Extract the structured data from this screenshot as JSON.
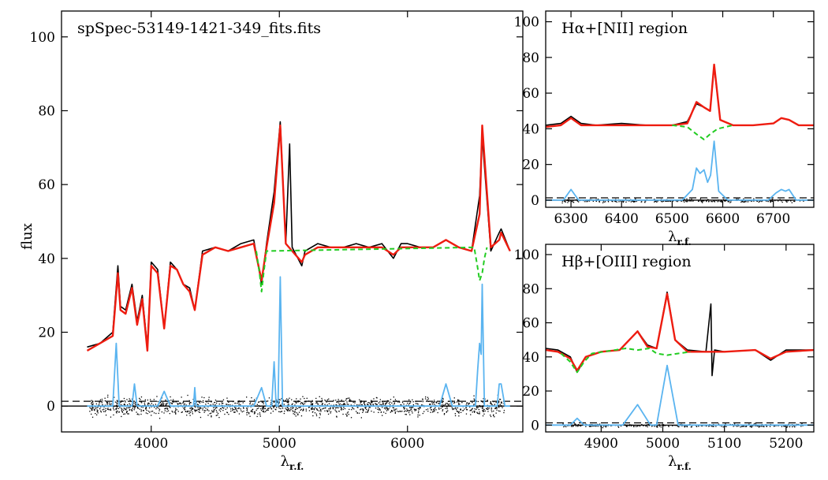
{
  "figure": {
    "ylabel": "flux",
    "xlabel": "λr.f.",
    "xlabel_main": "λ",
    "xlabel_sub": "r.f."
  },
  "colors": {
    "observed": "#000000",
    "model": "#ee1c10",
    "continuum": "#22cc22",
    "emission": "#5ab4f0",
    "residual": "#000000"
  },
  "chart_data": [
    {
      "type": "line",
      "panel": "full",
      "title": "spSpec-53149-1421-349_fits.fits",
      "xlabel": "λr.f.",
      "ylabel": "flux",
      "xlim": [
        3300,
        6900
      ],
      "ylim": [
        -7,
        107
      ],
      "xticks": [
        4000,
        5000,
        6000
      ],
      "yticks": [
        0,
        20,
        40,
        60,
        80,
        100
      ],
      "reference_lines": [
        {
          "style": "solid",
          "y": 0
        },
        {
          "style": "dashed",
          "y": 1.3
        }
      ],
      "series": [
        {
          "role": "observed",
          "x": [
            3500,
            3600,
            3700,
            3740,
            3760,
            3800,
            3850,
            3890,
            3930,
            3970,
            4000,
            4050,
            4101,
            4150,
            4200,
            4250,
            4300,
            4340,
            4400,
            4500,
            4600,
            4700,
            4800,
            4861,
            4900,
            4959,
            5007,
            5050,
            5080,
            5100,
            5175,
            5200,
            5300,
            5400,
            5500,
            5600,
            5700,
            5800,
            5890,
            5950,
            6000,
            6100,
            6200,
            6300,
            6400,
            6500,
            6563,
            6583,
            6650,
            6716,
            6731,
            6800
          ],
          "y": [
            16,
            17,
            20,
            38,
            27,
            26,
            33,
            23,
            30,
            16,
            39,
            37,
            21,
            39,
            37,
            33,
            32,
            26,
            42,
            43,
            42,
            44,
            45,
            33,
            44,
            58,
            77,
            44,
            71,
            43,
            38,
            42,
            44,
            43,
            43,
            44,
            43,
            44,
            40,
            44,
            44,
            43,
            43,
            45,
            43,
            42,
            57,
            73,
            42,
            47,
            48,
            42
          ]
        },
        {
          "role": "model",
          "x": [
            3500,
            3600,
            3700,
            3740,
            3760,
            3800,
            3850,
            3890,
            3930,
            3970,
            4000,
            4050,
            4101,
            4150,
            4200,
            4250,
            4300,
            4340,
            4400,
            4500,
            4600,
            4700,
            4800,
            4861,
            4900,
            4959,
            5007,
            5050,
            5100,
            5175,
            5200,
            5300,
            5400,
            5500,
            5600,
            5700,
            5800,
            5890,
            5950,
            6000,
            6100,
            6200,
            6300,
            6400,
            6500,
            6563,
            6583,
            6650,
            6716,
            6731,
            6800
          ],
          "y": [
            15,
            17,
            19,
            36,
            26,
            25,
            32,
            22,
            29,
            15,
            38,
            36,
            21,
            38,
            37,
            33,
            31,
            26,
            41,
            43,
            42,
            43,
            44,
            34,
            43,
            55,
            76,
            44,
            42,
            39,
            41,
            43,
            43,
            43,
            43,
            43,
            43,
            41,
            43,
            43,
            43,
            43,
            45,
            43,
            42,
            52,
            76,
            43,
            45,
            47,
            42
          ]
        },
        {
          "role": "continuum",
          "x": [
            4820,
            4845,
            4861,
            4877,
            4900,
            6520,
            6545,
            6563,
            6583,
            6600,
            6620
          ],
          "y": [
            42,
            36,
            31,
            36,
            42,
            43,
            38,
            34,
            36,
            40,
            43
          ]
        },
        {
          "role": "emission",
          "x": [
            3500,
            3700,
            3727,
            3750,
            3850,
            3869,
            3890,
            4050,
            4101,
            4150,
            4330,
            4340,
            4350,
            4800,
            4861,
            4900,
            4940,
            4959,
            4975,
            4990,
            5007,
            5025,
            5100,
            6250,
            6300,
            6350,
            6500,
            6530,
            6548,
            6563,
            6575,
            6583,
            6600,
            6650,
            6700,
            6716,
            6731,
            6760,
            6800
          ],
          "y": [
            0,
            0,
            17,
            0,
            0,
            6,
            0,
            0,
            4,
            0,
            0,
            5,
            0,
            0,
            5,
            0,
            0,
            12,
            0,
            0,
            35,
            0,
            0,
            0,
            6,
            0,
            0,
            0,
            10,
            17,
            14,
            33,
            0,
            0,
            0,
            6,
            6,
            0,
            0
          ]
        }
      ]
    },
    {
      "type": "line",
      "panel": "halpha",
      "title": "Hα+[NII] region",
      "xlabel": "λr.f.",
      "xlim": [
        6250,
        6780
      ],
      "ylim": [
        -4,
        106
      ],
      "xticks": [
        6300,
        6400,
        6500,
        6600,
        6700
      ],
      "yticks": [
        0,
        20,
        40,
        60,
        80,
        100
      ],
      "reference_lines": [
        {
          "style": "solid",
          "y": 0
        },
        {
          "style": "dashed",
          "y": 1.3
        }
      ],
      "series": [
        {
          "role": "observed",
          "x": [
            6250,
            6280,
            6300,
            6320,
            6350,
            6400,
            6450,
            6500,
            6530,
            6548,
            6563,
            6575,
            6583,
            6595,
            6620,
            6660,
            6700,
            6716,
            6731,
            6750,
            6780
          ],
          "y": [
            42,
            43,
            47,
            43,
            42,
            43,
            42,
            42,
            44,
            54,
            52,
            50,
            75,
            45,
            42,
            42,
            43,
            46,
            45,
            42,
            42
          ]
        },
        {
          "role": "model",
          "x": [
            6250,
            6280,
            6300,
            6320,
            6350,
            6400,
            6450,
            6500,
            6530,
            6548,
            6563,
            6575,
            6583,
            6595,
            6620,
            6660,
            6700,
            6716,
            6731,
            6750,
            6780
          ],
          "y": [
            41,
            42,
            46,
            42,
            42,
            42,
            42,
            42,
            43,
            55,
            52,
            50,
            76,
            45,
            42,
            42,
            43,
            46,
            45,
            42,
            42
          ]
        },
        {
          "role": "continuum",
          "x": [
            6500,
            6530,
            6548,
            6563,
            6575,
            6590,
            6620
          ],
          "y": [
            42,
            41,
            37,
            34,
            37,
            40,
            42
          ]
        },
        {
          "role": "emission",
          "x": [
            6250,
            6285,
            6300,
            6315,
            6520,
            6540,
            6548,
            6555,
            6563,
            6570,
            6576,
            6583,
            6592,
            6610,
            6690,
            6705,
            6716,
            6724,
            6731,
            6745,
            6780
          ],
          "y": [
            0,
            0,
            6,
            0,
            0,
            6,
            18,
            15,
            17,
            10,
            14,
            33,
            5,
            0,
            0,
            4,
            6,
            5,
            6,
            0,
            0
          ]
        }
      ]
    },
    {
      "type": "line",
      "panel": "hbeta",
      "title": "Hβ+[OIII] region",
      "xlabel": "λr.f.",
      "xlim": [
        4810,
        5245
      ],
      "ylim": [
        -4,
        106
      ],
      "xticks": [
        4900,
        5000,
        5100,
        5200
      ],
      "yticks": [
        0,
        20,
        40,
        60,
        80,
        100
      ],
      "reference_lines": [
        {
          "style": "solid",
          "y": 0
        },
        {
          "style": "dashed",
          "y": 1.3
        }
      ],
      "series": [
        {
          "role": "observed",
          "x": [
            4810,
            4830,
            4850,
            4861,
            4875,
            4900,
            4930,
            4959,
            4975,
            4990,
            5007,
            5020,
            5040,
            5070,
            5078,
            5080,
            5084,
            5100,
            5150,
            5175,
            5200,
            5245
          ],
          "y": [
            45,
            44,
            40,
            31,
            40,
            43,
            44,
            55,
            47,
            45,
            78,
            50,
            44,
            43,
            71,
            29,
            44,
            43,
            44,
            38,
            44,
            44
          ]
        },
        {
          "role": "model",
          "x": [
            4810,
            4830,
            4850,
            4861,
            4875,
            4900,
            4930,
            4959,
            4975,
            4990,
            5007,
            5020,
            5040,
            5070,
            5100,
            5150,
            5175,
            5200,
            5245
          ],
          "y": [
            44,
            43,
            39,
            32,
            40,
            43,
            44,
            55,
            46,
            45,
            77,
            50,
            43,
            43,
            43,
            44,
            39,
            43,
            44
          ]
        },
        {
          "role": "continuum",
          "x": [
            4835,
            4850,
            4861,
            4872,
            4885,
            4940,
            4959,
            4978,
            4990,
            5007,
            5025,
            5045
          ],
          "y": [
            42,
            37,
            31,
            37,
            42,
            45,
            44,
            45,
            42,
            41,
            42,
            43
          ]
        },
        {
          "role": "emission",
          "x": [
            4810,
            4850,
            4861,
            4872,
            4935,
            4959,
            4980,
            4990,
            5007,
            5025,
            5245
          ],
          "y": [
            0,
            0,
            4,
            0,
            0,
            12,
            0,
            0,
            35,
            0,
            0
          ]
        }
      ]
    }
  ]
}
